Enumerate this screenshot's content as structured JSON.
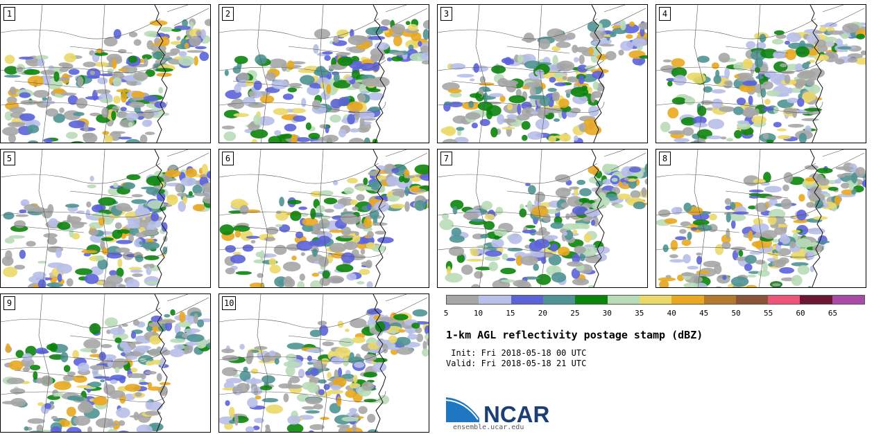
{
  "panels": [
    {
      "label": "1"
    },
    {
      "label": "2"
    },
    {
      "label": "3"
    },
    {
      "label": "4"
    },
    {
      "label": "5"
    },
    {
      "label": "6"
    },
    {
      "label": "7"
    },
    {
      "label": "8"
    },
    {
      "label": "9"
    },
    {
      "label": "10"
    }
  ],
  "legend": {
    "colors": [
      "#a6a6a6",
      "#b8bfe8",
      "#5c63d9",
      "#4f9394",
      "#0b840b",
      "#b8dcb8",
      "#ebd96a",
      "#e8a820",
      "#b4782e",
      "#8a5536",
      "#ec5478",
      "#6b1734",
      "#a84aa6"
    ],
    "ticks": [
      "5",
      "10",
      "15",
      "20",
      "25",
      "30",
      "35",
      "40",
      "45",
      "50",
      "55",
      "60",
      "65"
    ]
  },
  "title": "1-km AGL reflectivity postage stamp (dBZ)",
  "init_text": " Init: Fri 2018-05-18 00 UTC",
  "valid_text": "Valid: Fri 2018-05-18 21 UTC",
  "logo": {
    "text": "NCAR",
    "color": "#1b3f75",
    "swoosh_color": "#1f77c2"
  },
  "site": "ensemble.ucar.edu"
}
